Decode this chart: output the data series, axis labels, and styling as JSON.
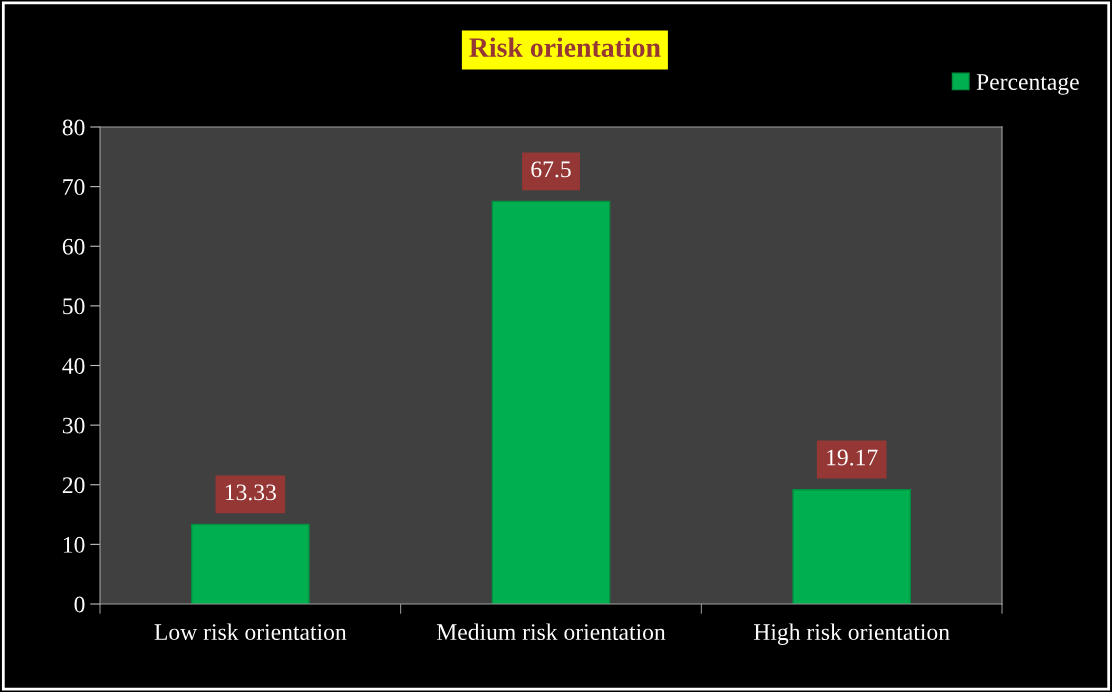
{
  "chart_data": {
    "type": "bar",
    "title": "Risk orientation",
    "categories": [
      "Low risk orientation",
      "Medium risk orientation",
      "High risk orientation"
    ],
    "series": [
      {
        "name": "Percentage",
        "color": "#00b050",
        "values": [
          13.33,
          67.5,
          19.17
        ]
      }
    ],
    "ylim": [
      0,
      80
    ],
    "yticks": [
      0,
      10,
      20,
      30,
      40,
      50,
      60,
      70,
      80
    ],
    "data_labels": true,
    "legend": "top right",
    "grid": false
  }
}
